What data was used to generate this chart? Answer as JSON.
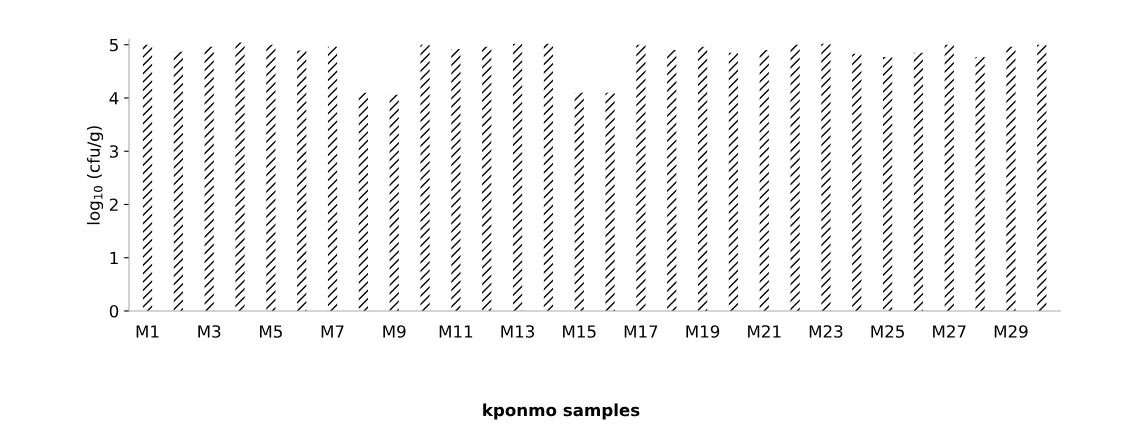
{
  "chart_data": {
    "type": "bar",
    "xlabel": "kponmo samples",
    "ylabel": "log$_{10}$ (cfu/g)",
    "categories": [
      "M1",
      null,
      "M3",
      null,
      "M5",
      null,
      "M7",
      null,
      "M9",
      null,
      "M11",
      null,
      "M13",
      null,
      "M15",
      null,
      "M17",
      null,
      "M19",
      null,
      "M21",
      null,
      "M23",
      null,
      "M25",
      null,
      "M27",
      null,
      "M29",
      null
    ],
    "values": [
      5.0,
      4.87,
      4.96,
      5.04,
      5.0,
      4.89,
      4.96,
      4.1,
      4.06,
      5.0,
      4.92,
      4.96,
      5.02,
      5.02,
      4.1,
      4.1,
      5.0,
      4.9,
      4.96,
      4.85,
      4.9,
      5.0,
      5.02,
      4.83,
      4.77,
      4.85,
      5.0,
      4.77,
      4.96,
      5.0
    ],
    "color": "#000000",
    "ylim": [
      0,
      5.1
    ],
    "yticks": [
      0,
      1,
      2,
      3,
      4,
      5
    ],
    "grid": false
  }
}
